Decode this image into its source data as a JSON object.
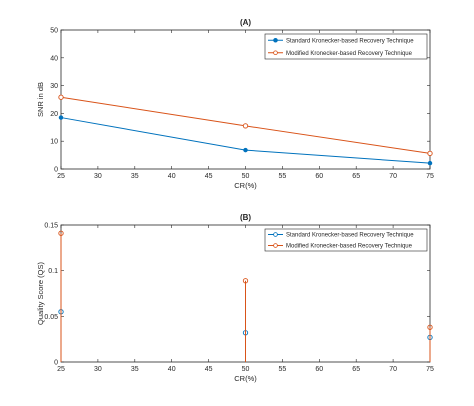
{
  "chart_data": [
    {
      "type": "line",
      "title": "(A)",
      "xlabel": "CR(%)",
      "ylabel": "SNR in dB",
      "xlim": [
        25,
        75
      ],
      "ylim": [
        0,
        50
      ],
      "x_ticks": [
        25,
        30,
        35,
        40,
        45,
        50,
        55,
        60,
        65,
        70,
        75
      ],
      "y_ticks": [
        0,
        10,
        20,
        30,
        40,
        50
      ],
      "x": [
        25,
        50,
        75
      ],
      "series": [
        {
          "name": "Standard Kronecker-based Recovery Technique",
          "values": [
            18.5,
            6.8,
            2.1
          ],
          "color": "#0072BD",
          "marker": "filled-circle"
        },
        {
          "name": "Modified Kronecker-based Recovery Technique",
          "values": [
            25.8,
            15.5,
            5.6
          ],
          "color": "#D95319",
          "marker": "open-circle"
        }
      ],
      "legend_position": "top-right",
      "grid": false
    },
    {
      "type": "stem",
      "title": "(B)",
      "xlabel": "CR(%)",
      "ylabel": "Quality Score (QS)",
      "xlim": [
        25,
        75
      ],
      "ylim": [
        0,
        0.15
      ],
      "x_ticks": [
        25,
        30,
        35,
        40,
        45,
        50,
        55,
        60,
        65,
        70,
        75
      ],
      "y_ticks": [
        0,
        0.05,
        0.1,
        0.15
      ],
      "y_tick_labels": [
        "0",
        "0.05",
        "0.1",
        "0.15"
      ],
      "x": [
        25,
        50,
        75
      ],
      "series": [
        {
          "name": "Standard Kronecker-based Recovery Technique",
          "values": [
            0.055,
            0.032,
            0.027
          ],
          "color": "#0072BD",
          "marker": "open-circle"
        },
        {
          "name": "Modified Kronecker-based Recovery Technique",
          "values": [
            0.141,
            0.089,
            0.038
          ],
          "color": "#D95319",
          "marker": "open-circle"
        }
      ],
      "legend_position": "top-right",
      "grid": false
    }
  ]
}
